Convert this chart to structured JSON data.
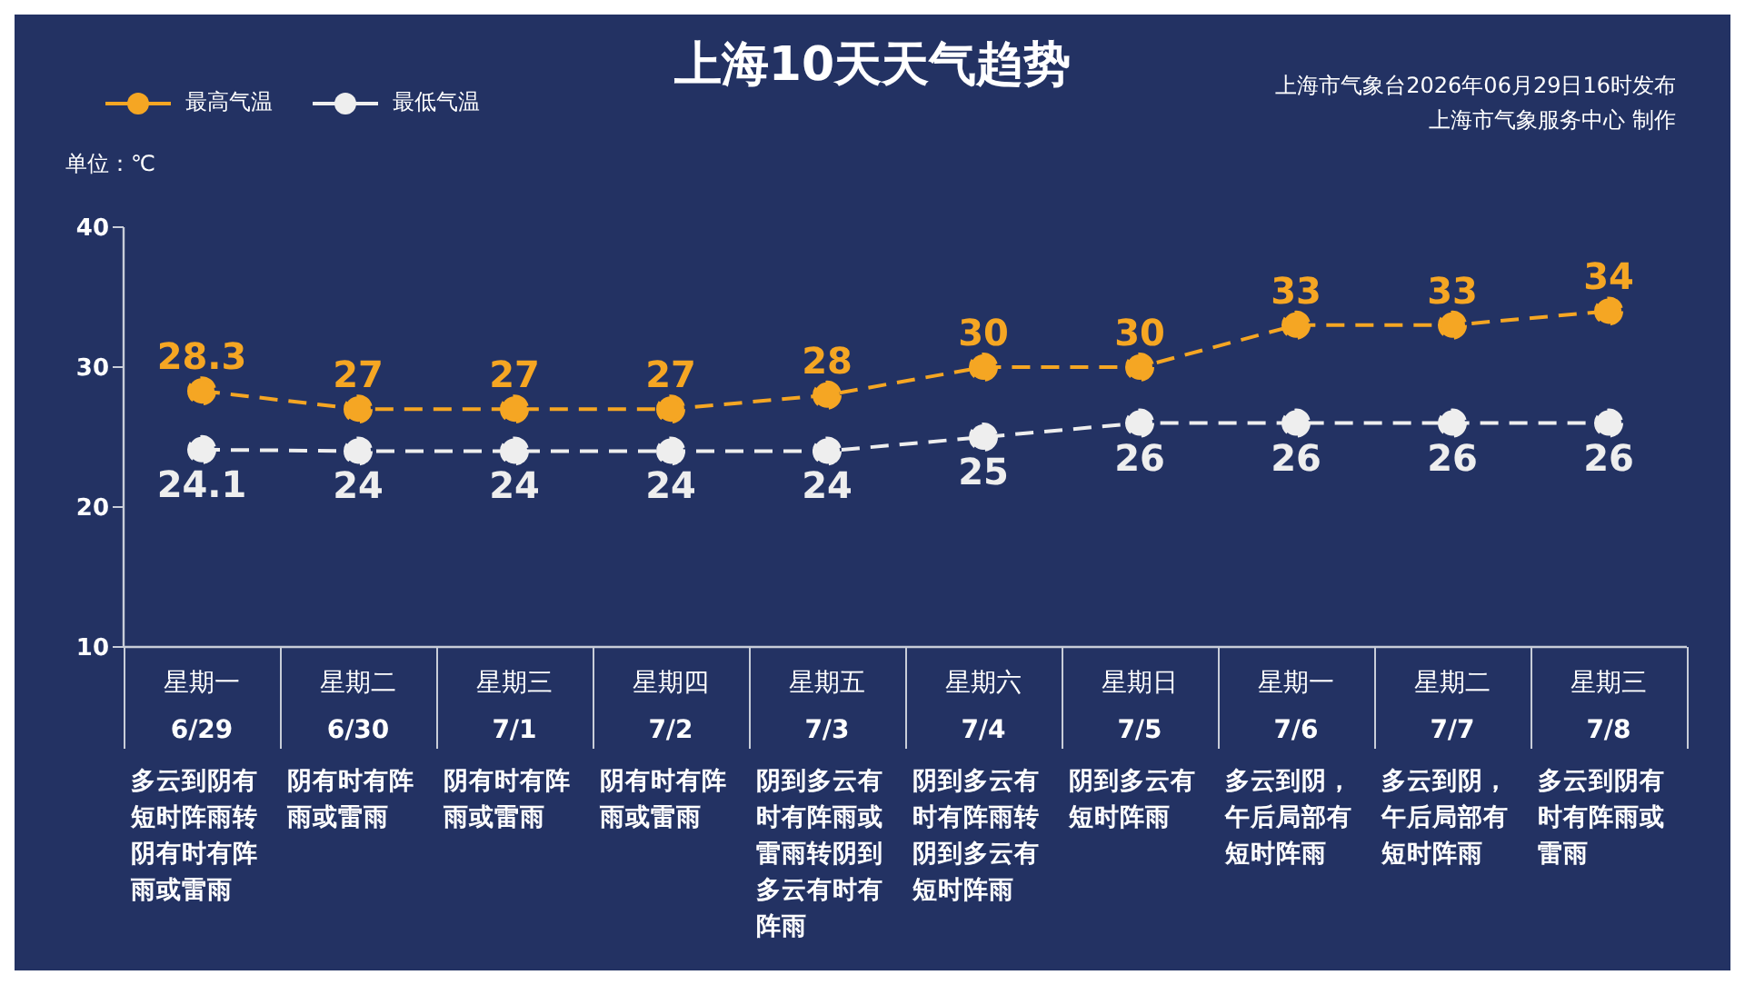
{
  "chart_data": {
    "type": "line",
    "title": "上海10天天气趋势",
    "ylabel": "单位：℃",
    "categories": [
      "星期一\n6/29\n多云到阴有短时阵雨转阴有时有阵雨或雷雨",
      "星期二\n6/30\n阴有时有阵雨或雷雨",
      "星期三\n7/1\n阴有时有阵雨或雷雨",
      "星期四\n7/2\n阴有时有阵雨或雷雨",
      "星期五\n7/3\n阴到多云有时有阵雨或雷雨转阴到多云有时有阵雨",
      "星期六\n7/4\n阴到多云有时有阵雨转阴到多云有短时阵雨",
      "星期日\n7/5\n阴到多云有短时阵雨",
      "星期一\n7/6\n多云到阴，午后局部有短时阵雨",
      "星期二\n7/7\n多云到阴，午后局部有短时阵雨",
      "星期三\n7/8\n多云到阴有时有阵雨或雷雨"
    ],
    "series": [
      {
        "name": "最高气温",
        "color": "#f5a623",
        "values": [
          28.3,
          27,
          27,
          27,
          28,
          30,
          30,
          33,
          33,
          34
        ]
      },
      {
        "name": "最低气温",
        "color": "#eeeeee",
        "values": [
          24.1,
          24,
          24,
          24,
          24,
          25,
          26,
          26,
          26,
          26
        ]
      }
    ],
    "ylim": [
      10,
      40
    ],
    "yticks": [
      10,
      20,
      30,
      40
    ],
    "data_labels": true,
    "legend": "top left",
    "marker": "circle",
    "line_style": "dashed",
    "annotations": [
      "上海市气象台2026年06月29日16时发布",
      "上海市气象服务中心 制作"
    ]
  }
}
